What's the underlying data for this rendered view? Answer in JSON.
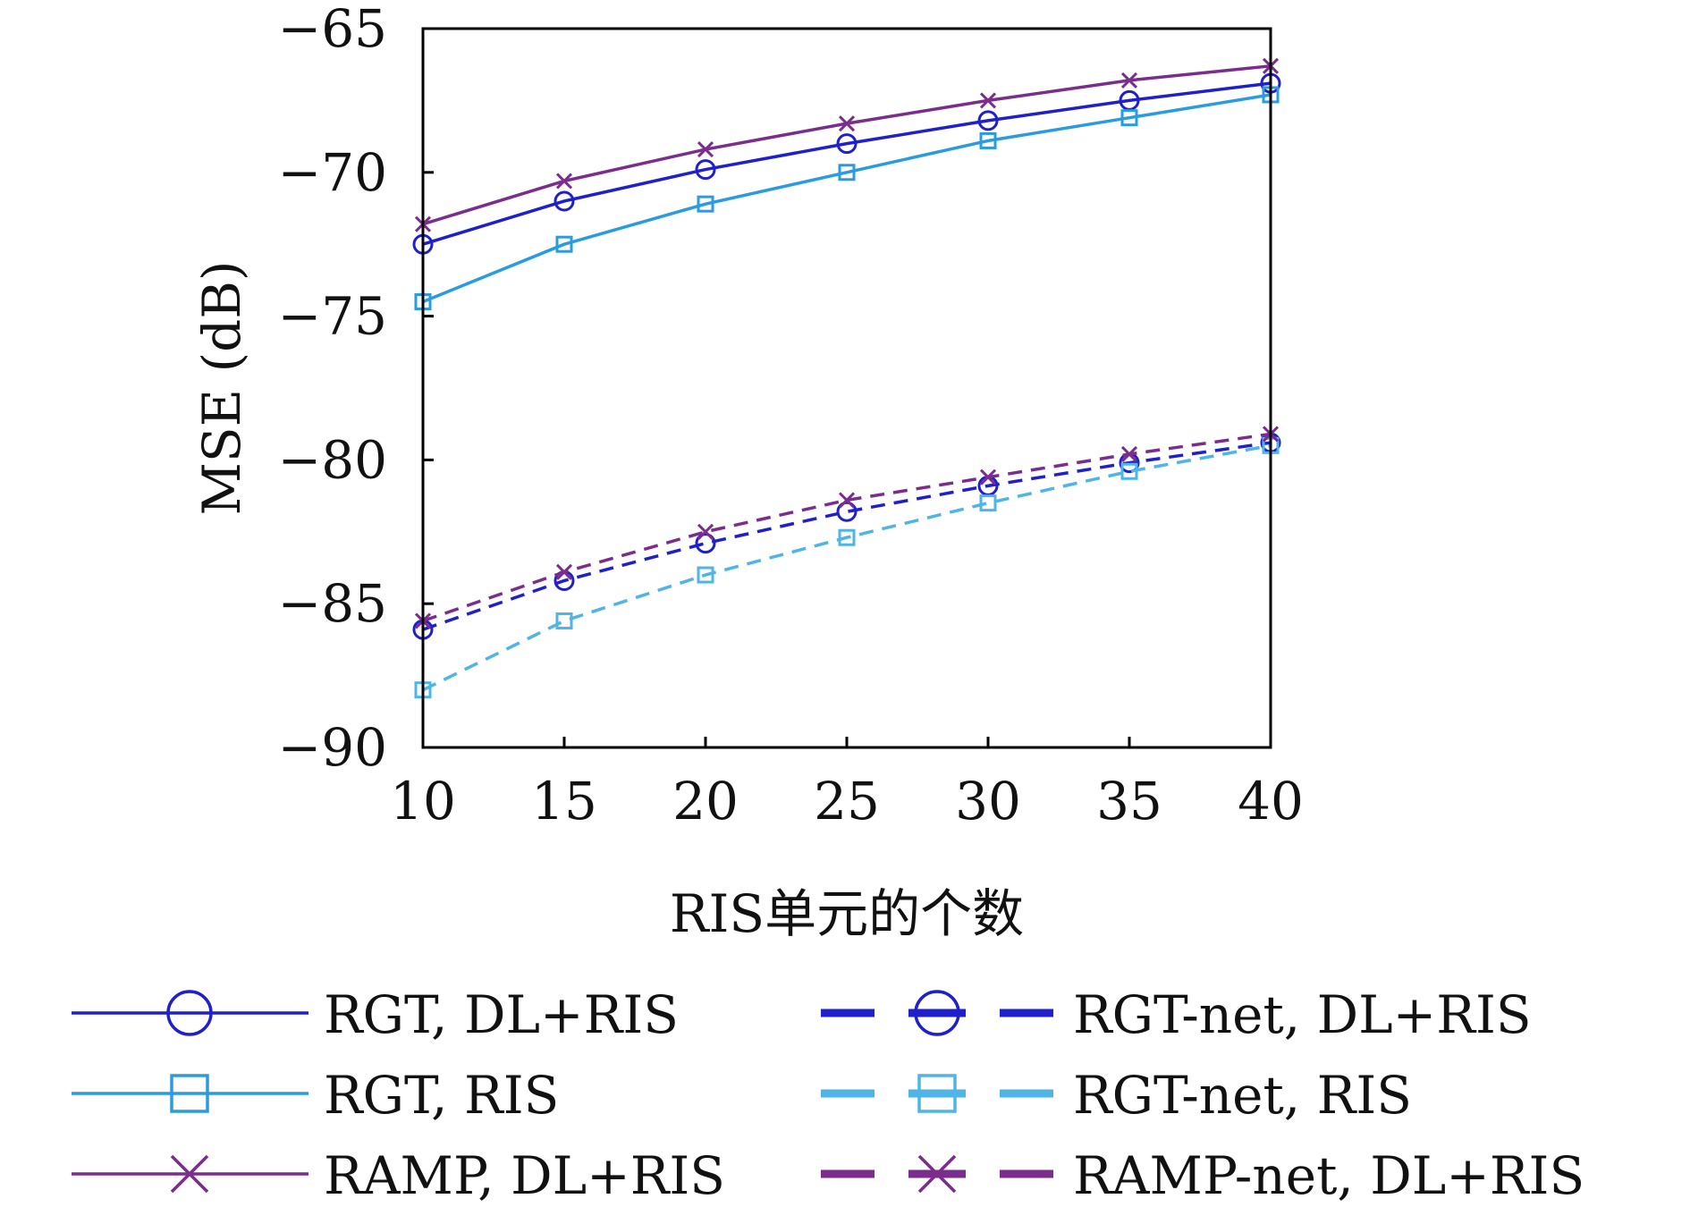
{
  "chart_data": {
    "type": "line",
    "title": "",
    "xlabel": "RIS单元的个数",
    "ylabel": "MSE (dB)",
    "x": [
      10,
      15,
      20,
      25,
      30,
      35,
      40
    ],
    "xlim": [
      10,
      40
    ],
    "ylim": [
      -90,
      -65
    ],
    "xticks": [
      "10",
      "15",
      "20",
      "25",
      "30",
      "35",
      "40"
    ],
    "yticks": [
      "−65",
      "−70",
      "−75",
      "−80",
      "−85",
      "−90"
    ],
    "grid": false,
    "legend_position": "bottom",
    "series": [
      {
        "name": "RGT, DL+RIS",
        "values": [
          -72.5,
          -71.0,
          -69.9,
          -69.0,
          -68.2,
          -67.5,
          -66.9
        ],
        "color": "#1f1fcc",
        "marker": "circle",
        "dashed": false
      },
      {
        "name": "RGT, RIS",
        "values": [
          -74.5,
          -72.5,
          -71.1,
          -70.0,
          -68.9,
          -68.1,
          -67.3
        ],
        "color": "#2b9be0",
        "marker": "square",
        "dashed": false
      },
      {
        "name": "RAMP, DL+RIS",
        "values": [
          -71.8,
          -70.3,
          -69.2,
          -68.3,
          -67.5,
          -66.8,
          -66.3
        ],
        "color": "#7b2d8e",
        "marker": "x",
        "dashed": false
      },
      {
        "name": "RGT-net, DL+RIS",
        "values": [
          -85.9,
          -84.2,
          -82.9,
          -81.8,
          -80.9,
          -80.1,
          -79.4
        ],
        "color": "#1f1fcc",
        "marker": "circle",
        "dashed": true
      },
      {
        "name": "RGT-net, RIS",
        "values": [
          -88.0,
          -85.6,
          -84.0,
          -82.7,
          -81.5,
          -80.4,
          -79.5
        ],
        "color": "#4fb4e6",
        "marker": "square",
        "dashed": true
      },
      {
        "name": "RAMP-net, DL+RIS",
        "values": [
          -85.6,
          -83.9,
          -82.5,
          -81.4,
          -80.6,
          -79.8,
          -79.1
        ],
        "color": "#7b2d8e",
        "marker": "x",
        "dashed": true
      }
    ]
  }
}
